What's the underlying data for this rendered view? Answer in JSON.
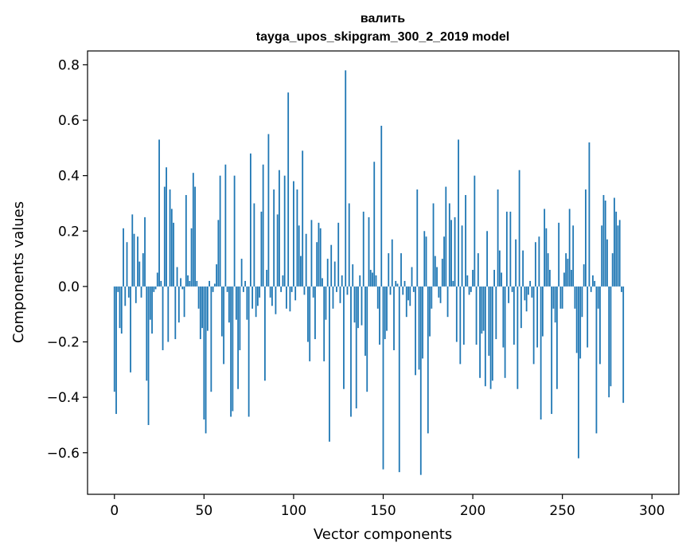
{
  "chart_data": {
    "type": "bar",
    "title_line1": "валить",
    "title_line2": "tayga_upos_skipgram_300_2_2019 model",
    "xlabel": "Vector components",
    "ylabel": "Components values",
    "xlim": [
      -15,
      315
    ],
    "ylim": [
      -0.75,
      0.85
    ],
    "xticks": [
      0,
      50,
      100,
      150,
      200,
      250,
      300
    ],
    "xtick_labels": [
      "0",
      "50",
      "100",
      "150",
      "200",
      "250",
      "300"
    ],
    "yticks": [
      -0.6,
      -0.4,
      -0.2,
      0.0,
      0.2,
      0.4,
      0.6,
      0.8
    ],
    "ytick_labels": [
      "−0.6",
      "−0.4",
      "−0.2",
      "0.0",
      "0.2",
      "0.4",
      "0.6",
      "0.8"
    ],
    "bar_color": "#1f77b4",
    "values": [
      -0.38,
      -0.46,
      -0.02,
      -0.15,
      -0.17,
      0.21,
      -0.07,
      0.16,
      -0.04,
      -0.31,
      0.26,
      0.19,
      -0.06,
      0.18,
      0.09,
      -0.04,
      0.12,
      0.25,
      -0.34,
      -0.5,
      -0.12,
      -0.17,
      -0.02,
      -0.01,
      0.05,
      0.53,
      0.02,
      -0.23,
      0.36,
      0.43,
      -0.2,
      0.35,
      0.28,
      0.23,
      -0.19,
      0.07,
      -0.13,
      0.03,
      -0.01,
      -0.11,
      0.33,
      0.04,
      0.02,
      0.21,
      0.41,
      0.36,
      0.02,
      -0.08,
      -0.19,
      -0.15,
      -0.48,
      -0.53,
      -0.16,
      0.02,
      -0.38,
      -0.02,
      0.01,
      0.08,
      0.24,
      0.4,
      -0.18,
      -0.28,
      0.44,
      -0.02,
      -0.13,
      -0.47,
      -0.45,
      0.4,
      -0.12,
      -0.37,
      -0.23,
      0.1,
      -0.02,
      0.02,
      -0.12,
      -0.47,
      0.48,
      -0.08,
      0.3,
      -0.11,
      -0.07,
      -0.04,
      0.27,
      0.44,
      -0.34,
      0.06,
      0.55,
      -0.04,
      -0.07,
      0.35,
      -0.1,
      0.26,
      0.42,
      -0.02,
      0.04,
      0.4,
      -0.08,
      0.7,
      -0.09,
      -0.02,
      0.38,
      -0.05,
      0.35,
      0.22,
      0.11,
      0.49,
      -0.03,
      0.19,
      -0.2,
      -0.27,
      0.24,
      -0.04,
      -0.19,
      0.16,
      0.23,
      0.21,
      0.03,
      -0.27,
      -0.12,
      0.1,
      -0.56,
      0.15,
      -0.08,
      0.09,
      -0.02,
      0.23,
      -0.06,
      0.04,
      -0.37,
      0.78,
      -0.03,
      0.3,
      -0.47,
      0.08,
      -0.13,
      -0.44,
      -0.15,
      0.04,
      -0.14,
      0.27,
      -0.25,
      -0.38,
      0.25,
      0.06,
      0.05,
      0.45,
      0.04,
      -0.08,
      -0.21,
      0.58,
      -0.66,
      -0.19,
      -0.16,
      0.12,
      -0.03,
      0.17,
      -0.23,
      0.02,
      0.01,
      -0.67,
      0.12,
      -0.03,
      0.02,
      -0.11,
      -0.05,
      -0.07,
      0.07,
      -0.02,
      -0.32,
      0.35,
      -0.3,
      -0.68,
      -0.26,
      0.2,
      0.18,
      -0.53,
      -0.18,
      -0.08,
      0.3,
      0.11,
      0.07,
      -0.04,
      -0.06,
      0.1,
      0.18,
      0.36,
      -0.11,
      0.3,
      0.24,
      0.02,
      0.25,
      -0.2,
      0.53,
      -0.28,
      0.22,
      -0.21,
      0.33,
      0.04,
      -0.03,
      -0.02,
      0.06,
      0.4,
      -0.21,
      0.12,
      -0.33,
      -0.17,
      -0.16,
      -0.36,
      0.2,
      -0.25,
      -0.37,
      -0.34,
      0.06,
      -0.19,
      0.35,
      0.13,
      0.05,
      -0.22,
      -0.33,
      0.27,
      -0.06,
      0.27,
      -0.02,
      -0.21,
      0.17,
      -0.37,
      0.42,
      -0.15,
      0.13,
      -0.05,
      -0.09,
      -0.03,
      0.02,
      -0.04,
      -0.28,
      0.16,
      -0.22,
      0.18,
      -0.48,
      -0.18,
      0.28,
      0.21,
      0.12,
      0.06,
      -0.46,
      -0.08,
      -0.13,
      -0.37,
      0.23,
      -0.08,
      -0.08,
      0.05,
      0.12,
      0.1,
      0.28,
      0.06,
      0.22,
      -0.08,
      -0.24,
      -0.62,
      -0.26,
      -0.11,
      0.08,
      0.35,
      -0.22,
      0.52,
      -0.02,
      0.04,
      0.02,
      -0.53,
      -0.08,
      -0.28,
      0.22,
      0.33,
      0.31,
      0.17,
      -0.4,
      -0.36,
      0.12,
      0.32,
      0.27,
      0.22,
      0.24,
      -0.02,
      -0.42
    ]
  }
}
